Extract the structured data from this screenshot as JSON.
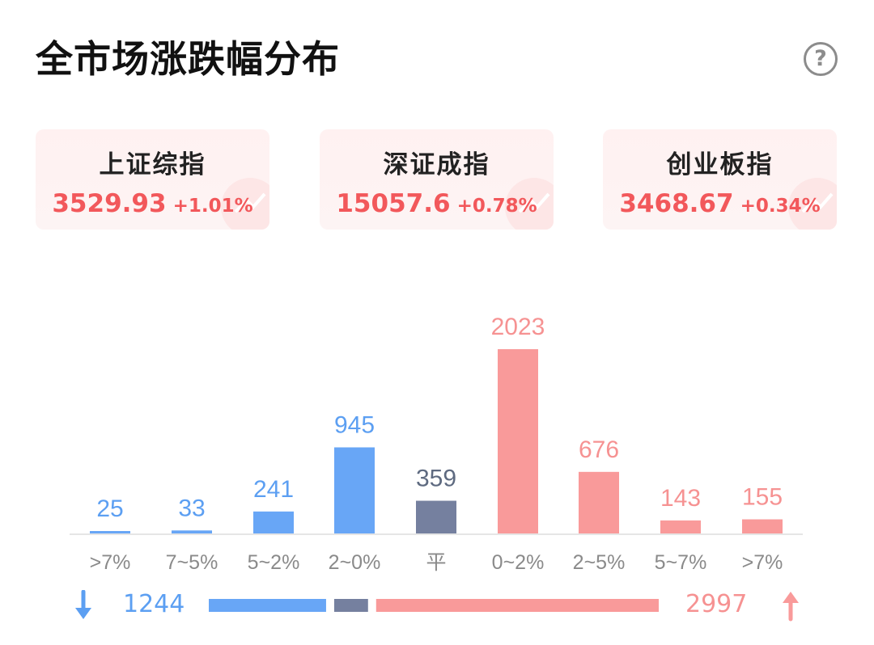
{
  "title": "全市场涨跌幅分布",
  "help_symbol": "?",
  "indices": [
    {
      "name": "上证综指",
      "value": "3529.93",
      "change": "+1.01%"
    },
    {
      "name": "深证成指",
      "value": "15057.6",
      "change": "+0.78%"
    },
    {
      "name": "创业板指",
      "value": "3468.67",
      "change": "+0.34%"
    }
  ],
  "colors": {
    "down_label": "#5c9ff2",
    "down_bar": "#68a6f6",
    "flat": "#75809f",
    "flat_label": "#5e6a80",
    "up_label": "#f69292",
    "up_bar": "#f99a9a",
    "axis_label": "#8a8a8a",
    "index_red": "#f2585b"
  },
  "chart_data": {
    "type": "bar",
    "categories": [
      ">7%",
      "7~5%",
      "5~2%",
      "2~0%",
      "平",
      "0~2%",
      "2~5%",
      "5~7%",
      ">7%"
    ],
    "values": [
      25,
      33,
      241,
      945,
      359,
      2023,
      676,
      143,
      155
    ],
    "groups": [
      "down",
      "down",
      "down",
      "down",
      "flat",
      "up",
      "up",
      "up",
      "up"
    ],
    "ylim": [
      0,
      2023
    ],
    "grid": false,
    "legend": "none"
  },
  "summary": {
    "down_total": "1244",
    "up_total": "2997",
    "down_count": 1244,
    "flat_count": 359,
    "up_count": 2997,
    "down_icon": "arrow-down-icon",
    "up_icon": "arrow-up-icon"
  }
}
